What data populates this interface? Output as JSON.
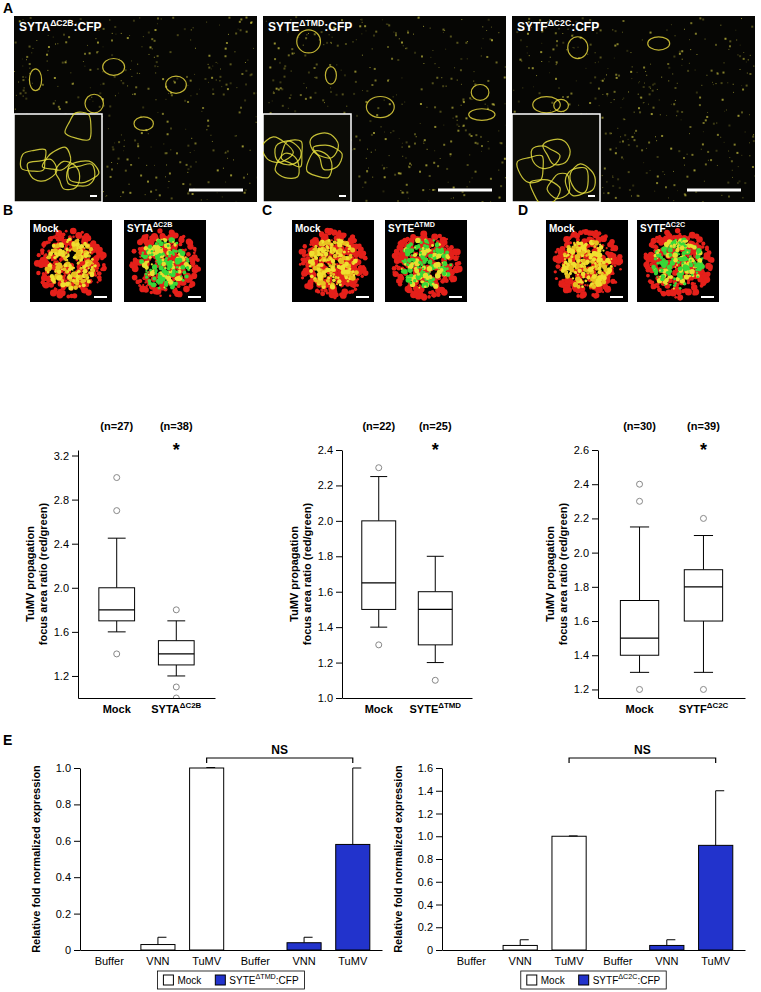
{
  "panel_labels": [
    "A",
    "B",
    "C",
    "D",
    "E"
  ],
  "images": {
    "A": [
      "SYTAΔC2B:CFP",
      "SYTEΔTMD:CFP",
      "SYTFΔC2C:CFP"
    ],
    "B": [
      "Mock",
      "SYTAΔC2B"
    ],
    "C": [
      "Mock",
      "SYTEΔTMD"
    ],
    "D": [
      "Mock",
      "SYTFΔC2C"
    ]
  },
  "chart_data": [
    {
      "type": "box",
      "y_label": [
        "TuMV propagation",
        "focus area ratio (red/green)"
      ],
      "categories": [
        "Mock",
        "SYTAΔC2B"
      ],
      "n_labels": [
        "(n=27)",
        "(n=38)"
      ],
      "annotations": [
        null,
        "*"
      ],
      "stats": [
        {
          "whisker_low": 1.6,
          "q1": 1.7,
          "median": 1.8,
          "q3": 2.0,
          "whisker_high": 2.45,
          "outliers": [
            1.4,
            2.7,
            3.0
          ]
        },
        {
          "whisker_low": 1.2,
          "q1": 1.3,
          "median": 1.4,
          "q3": 1.52,
          "whisker_high": 1.7,
          "outliers": [
            1.0,
            1.1,
            1.8
          ]
        }
      ],
      "ylim": [
        1.0,
        3.25
      ],
      "yticks": [
        1.2,
        1.6,
        {
          "value": 2,
          "label": "2.0"
        },
        2.4,
        2.8,
        3.2
      ]
    },
    {
      "type": "box",
      "y_label": [
        "TuMV propagation",
        "focus area ratio (red/green)"
      ],
      "categories": [
        "Mock",
        "SYTEΔTMD"
      ],
      "n_labels": [
        "(n=22)",
        "(n=25)"
      ],
      "annotations": [
        null,
        "*"
      ],
      "stats": [
        {
          "whisker_low": 1.4,
          "q1": 1.5,
          "median": 1.65,
          "q3": 2.0,
          "whisker_high": 2.25,
          "outliers": [
            1.3,
            2.3
          ]
        },
        {
          "whisker_low": 1.2,
          "q1": 1.3,
          "median": 1.5,
          "q3": 1.6,
          "whisker_high": 1.8,
          "outliers": [
            1.1
          ]
        }
      ],
      "ylim": [
        1.0,
        2.4
      ],
      "yticks": [
        {
          "value": 1,
          "label": "1.0"
        },
        1.2,
        1.4,
        1.6,
        1.8,
        {
          "value": 2,
          "label": "2.0"
        },
        2.2,
        2.4
      ]
    },
    {
      "type": "box",
      "y_label": [
        "TuMV propagation",
        "focus area ratio (red/green)"
      ],
      "categories": [
        "Mock",
        "SYTFΔC2C"
      ],
      "n_labels": [
        "(n=30)",
        "(n=39)"
      ],
      "annotations": [
        null,
        "*"
      ],
      "stats": [
        {
          "whisker_low": 1.3,
          "q1": 1.4,
          "median": 1.5,
          "q3": 1.72,
          "whisker_high": 2.15,
          "outliers": [
            1.2,
            2.3,
            2.4
          ]
        },
        {
          "whisker_low": 1.3,
          "q1": 1.6,
          "median": 1.8,
          "q3": 1.9,
          "whisker_high": 2.1,
          "outliers": [
            1.2,
            2.2
          ]
        }
      ],
      "ylim": [
        1.15,
        2.6
      ],
      "yticks": [
        1.2,
        1.4,
        1.6,
        1.8,
        {
          "value": 2,
          "label": "2.0"
        },
        2.2,
        2.4,
        2.6
      ]
    },
    {
      "type": "bar",
      "y_label": "Relative fold normalized expression",
      "categories": [
        "Buffer",
        "VNN",
        "TuMV",
        "Buffer",
        "VNN",
        "TuMV"
      ],
      "series": [
        {
          "name": "Mock",
          "color": "#ffffff",
          "values": [
            0,
            0.03,
            1.0,
            null,
            null,
            null
          ],
          "errors": [
            null,
            0.04,
            0.003,
            null,
            null,
            null
          ]
        },
        {
          "name": "SYTEΔTMD:CFP",
          "color": "#2233cc",
          "values": [
            null,
            null,
            null,
            0,
            0.04,
            0.58
          ],
          "errors": [
            null,
            null,
            null,
            null,
            0.03,
            0.42
          ]
        }
      ],
      "annotation": "NS",
      "legend": "bottom",
      "ylim": [
        0,
        1.0
      ],
      "yticks": [
        0,
        0.2,
        0.4,
        0.6,
        0.8,
        {
          "value": 1,
          "label": "1.0"
        }
      ]
    },
    {
      "type": "bar",
      "y_label": "Relative fold normalized expression",
      "categories": [
        "Buffer",
        "VNN",
        "TuMV",
        "Buffer",
        "VNN",
        "TuMV"
      ],
      "series": [
        {
          "name": "Mock",
          "color": "#ffffff",
          "values": [
            0,
            0.04,
            1.0,
            null,
            null,
            null
          ],
          "errors": [
            null,
            0.05,
            0.003,
            null,
            null,
            null
          ]
        },
        {
          "name": "SYTFΔC2C:CFP",
          "color": "#2233cc",
          "values": [
            null,
            null,
            null,
            0,
            0.04,
            0.92
          ],
          "errors": [
            null,
            null,
            null,
            null,
            0.05,
            0.48
          ]
        }
      ],
      "annotation": "NS",
      "legend": "bottom",
      "ylim": [
        0,
        1.6
      ],
      "yticks": [
        0,
        0.2,
        0.4,
        0.6,
        0.8,
        {
          "value": 1,
          "label": "1.0"
        },
        1.2,
        1.4,
        1.6
      ]
    }
  ]
}
